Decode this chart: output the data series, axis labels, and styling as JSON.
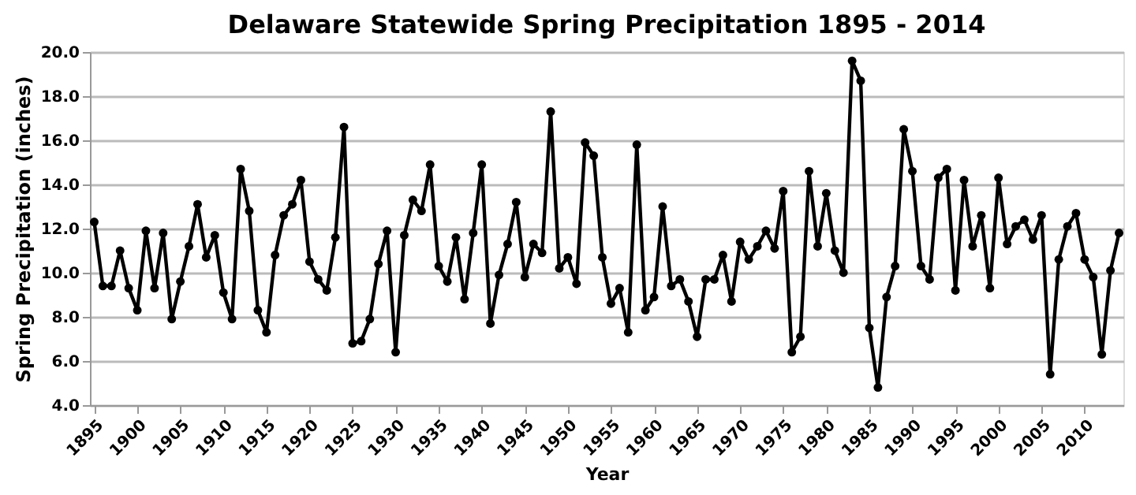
{
  "chart_data": {
    "type": "line",
    "title": "Delaware Statewide Spring Precipitation 1895 - 2014",
    "xlabel": "Year",
    "ylabel": "Spring Precipitation (inches)",
    "x": [
      1895,
      1896,
      1897,
      1898,
      1899,
      1900,
      1901,
      1902,
      1903,
      1904,
      1905,
      1906,
      1907,
      1908,
      1909,
      1910,
      1911,
      1912,
      1913,
      1914,
      1915,
      1916,
      1917,
      1918,
      1919,
      1920,
      1921,
      1922,
      1923,
      1924,
      1925,
      1926,
      1927,
      1928,
      1929,
      1930,
      1931,
      1932,
      1933,
      1934,
      1935,
      1936,
      1937,
      1938,
      1939,
      1940,
      1941,
      1942,
      1943,
      1944,
      1945,
      1946,
      1947,
      1948,
      1949,
      1950,
      1951,
      1952,
      1953,
      1954,
      1955,
      1956,
      1957,
      1958,
      1959,
      1960,
      1961,
      1962,
      1963,
      1964,
      1965,
      1966,
      1967,
      1968,
      1969,
      1970,
      1971,
      1972,
      1973,
      1974,
      1975,
      1976,
      1977,
      1978,
      1979,
      1980,
      1981,
      1982,
      1983,
      1984,
      1985,
      1986,
      1987,
      1988,
      1989,
      1990,
      1991,
      1992,
      1993,
      1994,
      1995,
      1996,
      1997,
      1998,
      1999,
      2000,
      2001,
      2002,
      2003,
      2004,
      2005,
      2006,
      2007,
      2008,
      2009,
      2010,
      2011,
      2012,
      2013,
      2014
    ],
    "series": [
      {
        "color": "#000000",
        "values": [
          12.3,
          9.4,
          9.4,
          11.0,
          9.3,
          8.3,
          11.9,
          9.3,
          11.8,
          7.9,
          9.6,
          11.2,
          13.1,
          10.7,
          11.7,
          9.1,
          7.9,
          14.7,
          12.8,
          8.3,
          7.3,
          10.8,
          12.6,
          13.1,
          14.2,
          10.5,
          9.7,
          9.2,
          11.6,
          16.6,
          6.8,
          6.9,
          7.9,
          10.4,
          11.9,
          6.4,
          11.7,
          13.3,
          12.8,
          14.9,
          10.3,
          9.6,
          11.6,
          8.8,
          11.8,
          14.9,
          7.7,
          9.9,
          11.3,
          13.2,
          9.8,
          11.3,
          10.9,
          17.3,
          10.2,
          10.7,
          9.5,
          15.9,
          15.3,
          10.7,
          8.6,
          9.3,
          7.3,
          15.8,
          8.3,
          8.9,
          13.0,
          9.4,
          9.7,
          8.7,
          7.1,
          9.7,
          9.7,
          10.8,
          8.7,
          11.4,
          10.6,
          11.2,
          11.9,
          11.1,
          13.7,
          6.4,
          7.1,
          14.6,
          11.2,
          13.6,
          11.0,
          10.0,
          19.6,
          18.7,
          7.5,
          4.8,
          8.9,
          10.3,
          16.5,
          14.6,
          10.3,
          9.7,
          14.3,
          14.7,
          9.2,
          14.2,
          11.2,
          12.6,
          9.3,
          14.3,
          11.3,
          12.1,
          12.4,
          11.5,
          12.6,
          5.4,
          10.6,
          12.1,
          12.7,
          10.6,
          9.8,
          6.3,
          10.1,
          11.8
        ]
      }
    ],
    "xlim": [
      1894.5,
      2014.5
    ],
    "xticks": [
      1895,
      1900,
      1905,
      1910,
      1915,
      1920,
      1925,
      1930,
      1935,
      1940,
      1945,
      1950,
      1955,
      1960,
      1965,
      1970,
      1975,
      1980,
      1985,
      1990,
      1995,
      2000,
      2005,
      2010
    ],
    "ylim": [
      4,
      20
    ],
    "yticks": [
      {
        "value": 4,
        "label": "4.0"
      },
      {
        "value": 6,
        "label": "6.0"
      },
      {
        "value": 8,
        "label": "8.0"
      },
      {
        "value": 10,
        "label": "10.0"
      },
      {
        "value": 12,
        "label": "12.0"
      },
      {
        "value": 14,
        "label": "14.0"
      },
      {
        "value": 16,
        "label": "16.0"
      },
      {
        "value": 18,
        "label": "18.0"
      },
      {
        "value": 20,
        "label": "20.0"
      }
    ],
    "grid": "y",
    "marker": "circle",
    "line_style": "solid"
  }
}
